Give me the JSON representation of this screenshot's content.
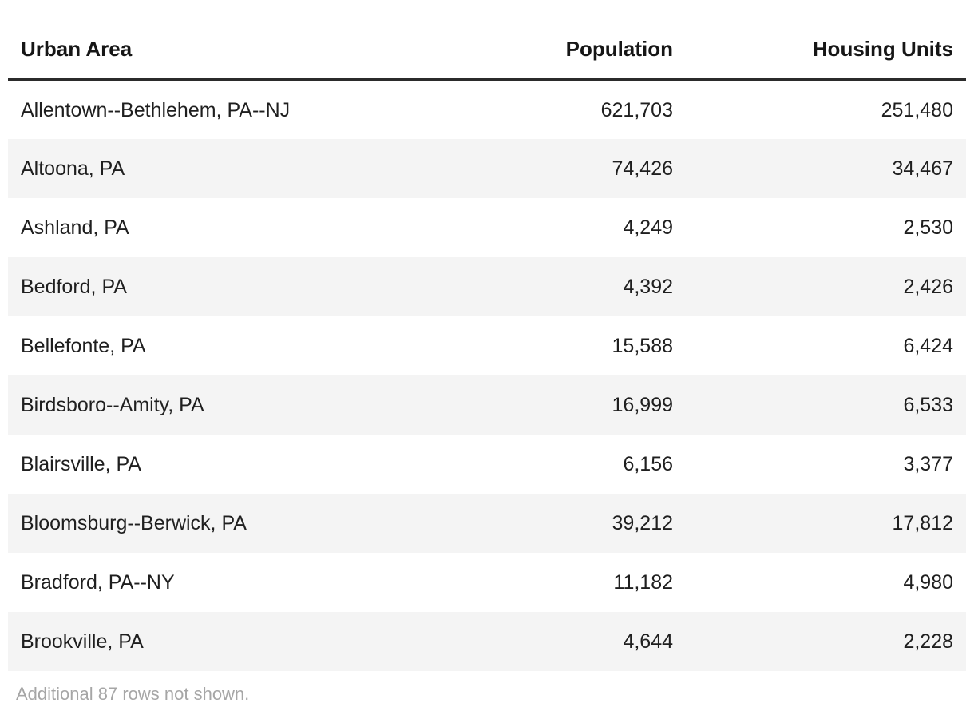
{
  "table": {
    "columns": [
      {
        "id": "urban_area",
        "label": "Urban Area",
        "align": "left"
      },
      {
        "id": "population",
        "label": "Population",
        "align": "right"
      },
      {
        "id": "housing_units",
        "label": "Housing Units",
        "align": "right"
      }
    ],
    "rows": [
      {
        "urban_area": "Allentown--Bethlehem, PA--NJ",
        "population": "621,703",
        "housing_units": "251,480"
      },
      {
        "urban_area": "Altoona, PA",
        "population": "74,426",
        "housing_units": "34,467"
      },
      {
        "urban_area": "Ashland, PA",
        "population": "4,249",
        "housing_units": "2,530"
      },
      {
        "urban_area": "Bedford, PA",
        "population": "4,392",
        "housing_units": "2,426"
      },
      {
        "urban_area": "Bellefonte, PA",
        "population": "15,588",
        "housing_units": "6,424"
      },
      {
        "urban_area": "Birdsboro--Amity, PA",
        "population": "16,999",
        "housing_units": "6,533"
      },
      {
        "urban_area": "Blairsville, PA",
        "population": "6,156",
        "housing_units": "3,377"
      },
      {
        "urban_area": "Bloomsburg--Berwick, PA",
        "population": "39,212",
        "housing_units": "17,812"
      },
      {
        "urban_area": "Bradford, PA--NY",
        "population": "11,182",
        "housing_units": "4,980"
      },
      {
        "urban_area": "Brookville, PA",
        "population": "4,644",
        "housing_units": "2,228"
      }
    ],
    "footer_note": "Additional 87 rows not shown.",
    "hidden_row_count": 87
  },
  "colors": {
    "text": "#1f1f1f",
    "header_text": "#161616",
    "row_stripe": "#f4f4f4",
    "header_rule": "#2b2b2b",
    "footer_text": "#a6a6a6",
    "background": "#ffffff"
  },
  "chart_data": {
    "type": "table",
    "columns": [
      "Urban Area",
      "Population",
      "Housing Units"
    ],
    "rows": [
      [
        "Allentown--Bethlehem, PA--NJ",
        621703,
        251480
      ],
      [
        "Altoona, PA",
        74426,
        34467
      ],
      [
        "Ashland, PA",
        4249,
        2530
      ],
      [
        "Bedford, PA",
        4392,
        2426
      ],
      [
        "Bellefonte, PA",
        15588,
        6424
      ],
      [
        "Birdsboro--Amity, PA",
        16999,
        6533
      ],
      [
        "Blairsville, PA",
        6156,
        3377
      ],
      [
        "Bloomsburg--Berwick, PA",
        39212,
        17812
      ],
      [
        "Bradford, PA--NY",
        11182,
        4980
      ],
      [
        "Brookville, PA",
        4644,
        2228
      ]
    ],
    "note": "Additional 87 rows not shown.",
    "hidden_rows": 87,
    "layout_hints": {
      "striped": true,
      "stripe_on": "even-rows",
      "numeric_columns_right_aligned": true,
      "header_rule": "thick-dark-bottom-border"
    }
  }
}
